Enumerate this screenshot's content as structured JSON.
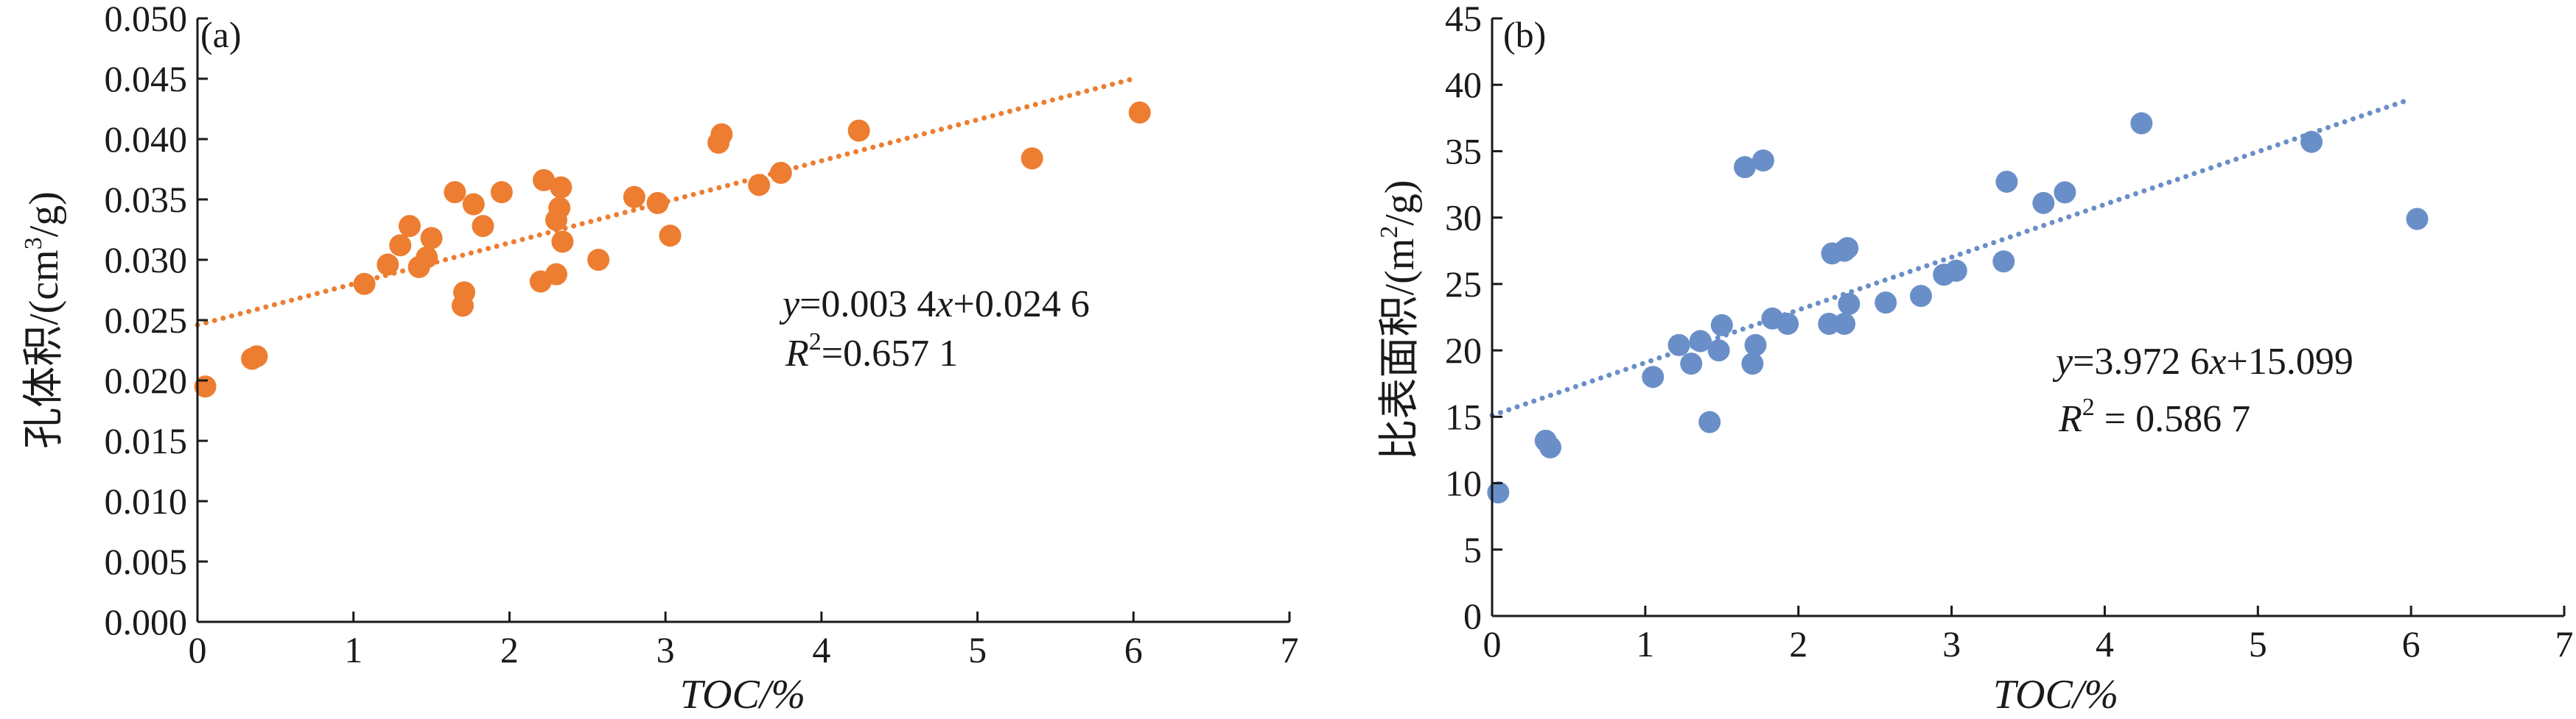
{
  "chart_data": [
    {
      "type": "scatter",
      "panel_label": "(a)",
      "xlabel": "TOC/%",
      "ylabel": "孔体积/(cm³/g)",
      "ylabel_parts": {
        "main": "孔体积/(cm",
        "sup": "3",
        "tail": "/g)"
      },
      "xlim": [
        0,
        7
      ],
      "ylim": [
        0.0,
        0.05
      ],
      "xticks": [
        "0",
        "1",
        "2",
        "3",
        "4",
        "5",
        "6",
        "7"
      ],
      "yticks": [
        "0.000",
        "0.005",
        "0.010",
        "0.015",
        "0.020",
        "0.025",
        "0.030",
        "0.035",
        "0.040",
        "0.045",
        "0.050"
      ],
      "color": "#ed7d31",
      "x": [
        0.05,
        0.35,
        0.38,
        1.07,
        1.22,
        1.3,
        1.36,
        1.42,
        1.47,
        1.5,
        1.65,
        1.7,
        1.71,
        1.77,
        1.83,
        1.95,
        2.2,
        2.22,
        2.3,
        2.3,
        2.32,
        2.33,
        2.34,
        2.57,
        2.8,
        2.95,
        3.03,
        3.34,
        3.36,
        3.6,
        3.74,
        4.24,
        5.35,
        6.04
      ],
      "y": [
        0.0195,
        0.0218,
        0.022,
        0.028,
        0.0296,
        0.0312,
        0.0328,
        0.0294,
        0.0302,
        0.0318,
        0.0356,
        0.0262,
        0.0273,
        0.0346,
        0.0328,
        0.0356,
        0.0282,
        0.0366,
        0.0288,
        0.0333,
        0.0343,
        0.036,
        0.0315,
        0.03,
        0.0352,
        0.0347,
        0.032,
        0.0397,
        0.0404,
        0.0362,
        0.0372,
        0.0407,
        0.0384,
        0.0422
      ],
      "fit": {
        "slope": 0.0034,
        "intercept": 0.0246,
        "x_range": [
          0,
          6.0
        ]
      },
      "equation": {
        "y_var": "y",
        "eq_rest": "=0.003 4",
        "x_var": "x",
        "eq_tail": "+0.024 6",
        "r_var": "R",
        "r_sup": "2",
        "r_rest": "=0.657 1"
      }
    },
    {
      "type": "scatter",
      "panel_label": "(b)",
      "xlabel": "TOC/%",
      "ylabel": "比表面积/(m²/g)",
      "ylabel_parts": {
        "main": "比表面积/(m",
        "sup": "2",
        "tail": "/g)"
      },
      "xlim": [
        0,
        7
      ],
      "ylim": [
        0,
        45
      ],
      "xticks": [
        "0",
        "1",
        "2",
        "3",
        "4",
        "5",
        "6",
        "7"
      ],
      "yticks": [
        "0",
        "5",
        "10",
        "15",
        "20",
        "25",
        "30",
        "35",
        "40",
        "45"
      ],
      "color": "#6a8fc8",
      "x": [
        0.04,
        0.35,
        0.38,
        1.05,
        1.22,
        1.3,
        1.36,
        1.42,
        1.48,
        1.5,
        1.65,
        1.7,
        1.72,
        1.77,
        1.83,
        1.93,
        2.2,
        2.22,
        2.3,
        2.3,
        2.32,
        2.33,
        2.57,
        2.8,
        2.95,
        3.03,
        3.34,
        3.36,
        3.6,
        3.74,
        4.24,
        5.35,
        6.04
      ],
      "y": [
        9.3,
        13.2,
        12.7,
        18,
        20.4,
        19,
        20.7,
        14.6,
        20,
        21.9,
        33.8,
        19,
        20.4,
        34.3,
        22.4,
        22,
        22,
        27.3,
        27.5,
        22,
        27.7,
        23.5,
        23.6,
        24.1,
        25.7,
        26,
        26.7,
        32.7,
        31.1,
        31.9,
        37.1,
        35.7,
        29.9
      ],
      "fit": {
        "slope": 3.9726,
        "intercept": 15.099,
        "x_range": [
          0,
          6.0
        ]
      },
      "equation": {
        "y_var": "y",
        "eq_rest": "=3.972 6",
        "x_var": "x",
        "eq_tail": "+15.099",
        "r_var": "R",
        "r_sup": "2",
        "r_rest": " = 0.586 7"
      }
    }
  ]
}
